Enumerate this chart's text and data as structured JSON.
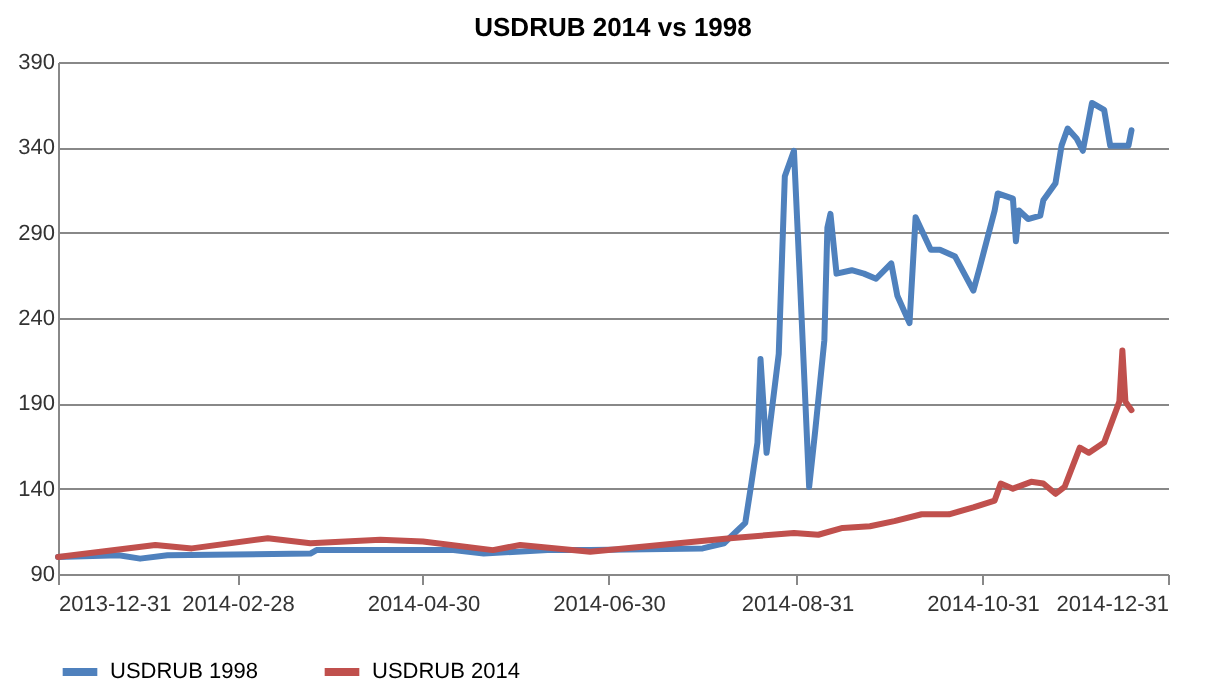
{
  "chart_data": {
    "type": "line",
    "title": "USDRUB 2014  vs 1998",
    "xlim": [
      "2013-12-31",
      "2014-12-31"
    ],
    "xticks": [
      "2013-12-31",
      "2014-02-28",
      "2014-04-30",
      "2014-06-30",
      "2014-08-31",
      "2014-10-31",
      "2014-12-31"
    ],
    "ylim": [
      90,
      390
    ],
    "yticks": [
      90,
      140,
      190,
      240,
      290,
      340,
      390
    ],
    "grid": "y",
    "legend": "bottom",
    "marker": "none",
    "line_style": "solid",
    "series": [
      {
        "name": "USDRUB 1998",
        "color": "#4f81bd",
        "x": [
          "2013-12-31",
          "2014-01-20",
          "2014-01-27",
          "2014-02-05",
          "2014-03-24",
          "2014-03-26",
          "2014-05-10",
          "2014-05-20",
          "2014-06-10",
          "2014-06-24",
          "2014-07-31",
          "2014-08-07",
          "2014-08-14",
          "2014-08-16",
          "2014-08-18",
          "2014-08-19",
          "2014-08-21",
          "2014-08-25",
          "2014-08-27",
          "2014-08-30",
          "2014-09-01",
          "2014-09-04",
          "2014-09-06",
          "2014-09-09",
          "2014-09-10",
          "2014-09-11",
          "2014-09-13",
          "2014-09-18",
          "2014-09-22",
          "2014-09-26",
          "2014-10-01",
          "2014-10-03",
          "2014-10-07",
          "2014-10-09",
          "2014-10-14",
          "2014-10-17",
          "2014-10-22",
          "2014-10-28",
          "2014-10-30",
          "2014-11-04",
          "2014-11-05",
          "2014-11-10",
          "2014-11-11",
          "2014-11-12",
          "2014-11-15",
          "2014-11-19",
          "2014-11-20",
          "2014-11-24",
          "2014-11-26",
          "2014-11-28",
          "2014-12-01",
          "2014-12-03",
          "2014-12-06",
          "2014-12-10",
          "2014-12-12",
          "2014-12-18",
          "2014-12-19"
        ],
        "values": [
          100,
          101,
          99,
          101,
          102,
          104,
          104,
          102,
          104,
          104,
          105,
          108,
          120,
          143,
          167,
          216,
          161,
          219,
          323,
          338,
          261,
          141,
          174,
          227,
          293,
          301,
          266,
          268,
          266,
          263,
          272,
          253,
          237,
          299,
          280,
          280,
          276,
          256,
          269,
          303,
          313,
          310,
          285,
          303,
          298,
          300,
          309,
          319,
          341,
          351,
          345,
          338,
          366,
          362,
          341,
          341,
          350
        ]
      },
      {
        "name": "USDRUB 2014",
        "color": "#c0504d",
        "x": [
          "2013-12-31",
          "2014-02-01",
          "2014-02-13",
          "2014-03-10",
          "2014-03-24",
          "2014-04-16",
          "2014-04-30",
          "2014-05-23",
          "2014-06-01",
          "2014-06-24",
          "2014-07-17",
          "2014-08-09",
          "2014-08-30",
          "2014-09-07",
          "2014-09-15",
          "2014-09-24",
          "2014-10-02",
          "2014-10-11",
          "2014-10-20",
          "2014-10-28",
          "2014-11-04",
          "2014-11-06",
          "2014-11-10",
          "2014-11-16",
          "2014-11-20",
          "2014-11-24",
          "2014-11-27",
          "2014-12-02",
          "2014-12-05",
          "2014-12-10",
          "2014-12-15",
          "2014-12-16",
          "2014-12-17",
          "2014-12-19"
        ],
        "values": [
          100,
          107,
          105,
          111,
          108,
          110,
          109,
          104,
          107,
          103,
          107,
          111,
          114,
          113,
          117,
          118,
          121,
          125,
          125,
          129,
          133,
          143,
          140,
          144,
          143,
          137,
          141,
          164,
          161,
          167,
          191,
          221,
          191,
          186
        ]
      }
    ]
  }
}
